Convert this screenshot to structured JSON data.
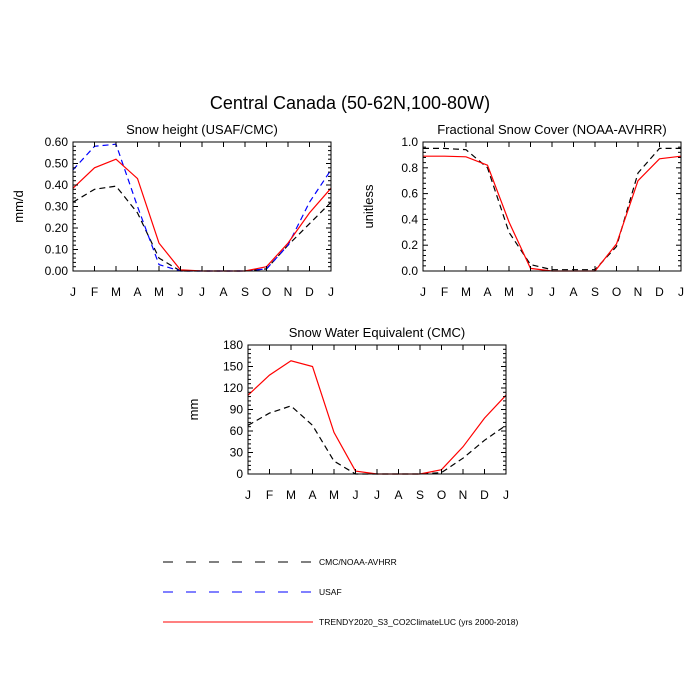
{
  "main_title": "Central Canada (50-62N,100-80W)",
  "chart_data": [
    {
      "id": "snow_height",
      "type": "line",
      "title": "Snow height (USAF/CMC)",
      "xlabel": "",
      "ylabel": "mm/d",
      "categories": [
        "J",
        "F",
        "M",
        "A",
        "M",
        "J",
        "J",
        "A",
        "S",
        "O",
        "N",
        "D",
        "J"
      ],
      "ylim": [
        0,
        0.6
      ],
      "yticks": [
        "0.00",
        "0.10",
        "0.20",
        "0.30",
        "0.40",
        "0.50",
        "0.60"
      ],
      "series": [
        {
          "name": "CMC/NOAA-AVHRR",
          "color": "#000000",
          "dash": true,
          "values": [
            0.32,
            0.38,
            0.395,
            0.27,
            0.06,
            0.0,
            0.0,
            0.0,
            0.0,
            0.01,
            0.12,
            0.22,
            0.32
          ]
        },
        {
          "name": "USAF",
          "color": "#0000ff",
          "dash": true,
          "values": [
            0.47,
            0.58,
            0.59,
            0.3,
            0.03,
            0.0,
            0.0,
            0.0,
            0.0,
            0.01,
            0.12,
            0.32,
            0.47
          ]
        },
        {
          "name": "TRENDY2020_S3_CO2ClimateLUC (yrs 2000-2018)",
          "color": "#ff0000",
          "dash": false,
          "values": [
            0.385,
            0.48,
            0.52,
            0.43,
            0.13,
            0.005,
            0.0,
            0.0,
            0.0,
            0.02,
            0.13,
            0.27,
            0.385
          ]
        }
      ]
    },
    {
      "id": "snow_cover",
      "type": "line",
      "title": "Fractional Snow Cover (NOAA-AVHRR)",
      "xlabel": "",
      "ylabel": "unitless",
      "categories": [
        "J",
        "F",
        "M",
        "A",
        "M",
        "J",
        "J",
        "A",
        "S",
        "O",
        "N",
        "D",
        "J"
      ],
      "ylim": [
        0,
        1.0
      ],
      "yticks": [
        "0.0",
        "0.2",
        "0.4",
        "0.6",
        "0.8",
        "1.0"
      ],
      "series": [
        {
          "name": "CMC/NOAA-AVHRR",
          "color": "#000000",
          "dash": true,
          "values": [
            0.95,
            0.95,
            0.94,
            0.8,
            0.3,
            0.05,
            0.01,
            0.01,
            0.01,
            0.19,
            0.76,
            0.95,
            0.95
          ]
        },
        {
          "name": "TRENDY2020_S3_CO2ClimateLUC (yrs 2000-2018)",
          "color": "#ff0000",
          "dash": false,
          "values": [
            0.89,
            0.89,
            0.885,
            0.82,
            0.38,
            0.02,
            0.0,
            0.0,
            0.0,
            0.21,
            0.7,
            0.87,
            0.89
          ]
        }
      ]
    },
    {
      "id": "swe",
      "type": "line",
      "title": "Snow Water Equivalent (CMC)",
      "xlabel": "",
      "ylabel": "mm",
      "categories": [
        "J",
        "F",
        "M",
        "A",
        "M",
        "J",
        "J",
        "A",
        "S",
        "O",
        "N",
        "D",
        "J"
      ],
      "ylim": [
        0,
        180
      ],
      "yticks": [
        "0",
        "30",
        "60",
        "90",
        "120",
        "150",
        "180"
      ],
      "series": [
        {
          "name": "CMC/NOAA-AVHRR",
          "color": "#000000",
          "dash": true,
          "values": [
            68,
            85,
            95,
            68,
            18,
            0,
            0,
            0,
            0,
            2,
            22,
            47,
            68
          ]
        },
        {
          "name": "TRENDY2020_S3_CO2ClimateLUC (yrs 2000-2018)",
          "color": "#ff0000",
          "dash": false,
          "values": [
            110,
            138,
            158,
            150,
            58,
            4,
            0,
            0,
            0,
            6,
            38,
            78,
            110
          ]
        }
      ]
    }
  ],
  "legend": [
    {
      "label": "CMC/NOAA-AVHRR",
      "color": "#000000",
      "dash": true
    },
    {
      "label": "USAF",
      "color": "#0000ff",
      "dash": true
    },
    {
      "label": "TRENDY2020_S3_CO2ClimateLUC (yrs 2000-2018)",
      "color": "#ff0000",
      "dash": false
    }
  ]
}
